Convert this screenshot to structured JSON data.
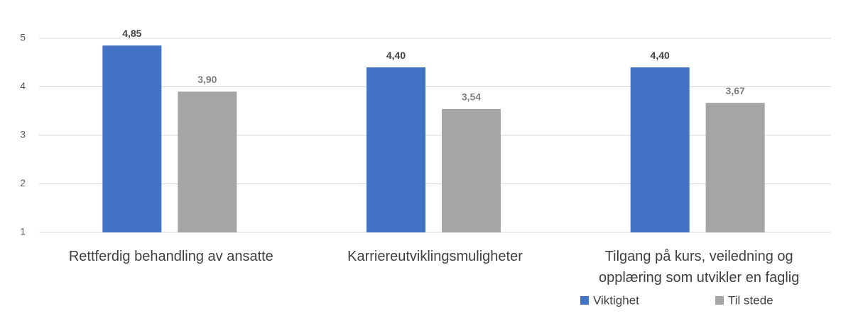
{
  "chart_data": {
    "type": "bar",
    "categories": [
      "Rettferdig behandling av ansatte",
      "Karriereutviklingsmuligheter",
      "Tilgang på kurs, veiledning og opplæring som utvikler en faglig"
    ],
    "series": [
      {
        "name": "Viktighet",
        "color": "#4472c4",
        "values": [
          4.85,
          4.4,
          4.4
        ],
        "value_labels": [
          "4,85",
          "4,40",
          "4,40"
        ]
      },
      {
        "name": "Til stede",
        "color": "#a5a5a5",
        "values": [
          3.9,
          3.54,
          3.67
        ],
        "value_labels": [
          "3,90",
          "3,54",
          "3,67"
        ]
      }
    ],
    "ylim": [
      1,
      5
    ],
    "yticks": [
      1,
      2,
      3,
      4,
      5
    ],
    "grid": true,
    "legend": "bottom"
  }
}
